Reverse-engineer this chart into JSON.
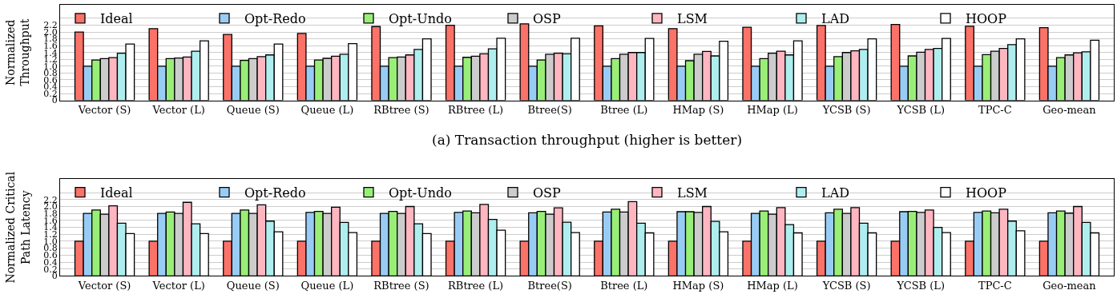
{
  "chart_data": [
    {
      "type": "bar",
      "ylabel": "Normalized\nThroughput",
      "annotations": [
        "(a) Transaction throughput (higher is better)"
      ],
      "categories": [
        "Vector (S)",
        "Vector (L)",
        "Queue (S)",
        "Queue (L)",
        "RBtree (S)",
        "RBtree (L)",
        "Btree(S)",
        "Btree (L)",
        "HMap (S)",
        "HMap (L)",
        "YCSB (S)",
        "YCSB (L)",
        "TPC-C",
        "Geo-mean"
      ],
      "series": [
        {
          "name": "Ideal",
          "color": "#fa7268",
          "values": [
            2.0,
            2.1,
            1.93,
            1.96,
            2.16,
            2.2,
            2.24,
            2.18,
            2.1,
            2.14,
            2.19,
            2.22,
            2.17,
            2.13
          ]
        },
        {
          "name": "Opt-Redo",
          "color": "#99ccf5",
          "values": [
            1.0,
            1.0,
            1.0,
            1.0,
            1.0,
            1.0,
            1.0,
            1.0,
            1.0,
            1.0,
            1.0,
            1.0,
            1.0,
            1.0
          ]
        },
        {
          "name": "Opt-Undo",
          "color": "#99ee77",
          "values": [
            1.18,
            1.22,
            1.17,
            1.18,
            1.25,
            1.26,
            1.18,
            1.22,
            1.16,
            1.22,
            1.28,
            1.3,
            1.34,
            1.25
          ]
        },
        {
          "name": "OSP",
          "color": "#cccccc",
          "values": [
            1.22,
            1.24,
            1.22,
            1.23,
            1.27,
            1.29,
            1.35,
            1.35,
            1.35,
            1.38,
            1.4,
            1.41,
            1.44,
            1.33
          ]
        },
        {
          "name": "LSM",
          "color": "#ffb6c1",
          "values": [
            1.25,
            1.27,
            1.28,
            1.29,
            1.33,
            1.36,
            1.38,
            1.4,
            1.43,
            1.44,
            1.45,
            1.49,
            1.52,
            1.39
          ]
        },
        {
          "name": "LAD",
          "color": "#aeeeee",
          "values": [
            1.38,
            1.44,
            1.33,
            1.35,
            1.49,
            1.51,
            1.36,
            1.4,
            1.3,
            1.33,
            1.49,
            1.52,
            1.63,
            1.42
          ]
        },
        {
          "name": "HOOP",
          "color": "#ffffff",
          "values": [
            1.65,
            1.74,
            1.65,
            1.66,
            1.8,
            1.82,
            1.82,
            1.81,
            1.73,
            1.74,
            1.8,
            1.81,
            1.8,
            1.76
          ]
        }
      ],
      "ylim": [
        0,
        2.8
      ],
      "yticks": [
        0,
        {
          "value": 0.2,
          "label": "0.2"
        },
        {
          "value": 0.4,
          "label": "0.4"
        },
        {
          "value": 0.6,
          "label": "0.6"
        },
        {
          "value": 0.8,
          "label": "0.8"
        },
        {
          "value": 1,
          "label": "1.0"
        },
        {
          "value": 1.2,
          "label": "1.2"
        },
        {
          "value": 1.4,
          "label": "1.4"
        },
        {
          "value": 1.6,
          "label": "1.6"
        },
        {
          "value": 1.8,
          "label": "1.8"
        },
        {
          "value": 2,
          "label": "2.0"
        },
        {
          "value": 2.2,
          "label": "2.2"
        },
        {
          "value": 2.4,
          "label": null
        }
      ],
      "grid": "y",
      "legend": "top left"
    },
    {
      "type": "bar",
      "ylabel": "Normalized Critical\nPath Latency",
      "categories": [
        "Vector (S)",
        "Vector (L)",
        "Queue (S)",
        "Queue (L)",
        "RBtree (S)",
        "RBtree (L)",
        "Btree(S)",
        "Btree (L)",
        "HMap (S)",
        "HMap (L)",
        "YCSB (S)",
        "YCSB (L)",
        "TPC-C",
        "Geo-mean"
      ],
      "series": [
        {
          "name": "Ideal",
          "color": "#fa7268",
          "values": [
            1.0,
            1.0,
            1.0,
            1.0,
            1.0,
            1.0,
            1.0,
            1.0,
            1.0,
            1.0,
            1.0,
            1.0,
            1.0,
            1.0
          ]
        },
        {
          "name": "Opt-Redo",
          "color": "#99ccf5",
          "values": [
            1.8,
            1.8,
            1.8,
            1.83,
            1.8,
            1.83,
            1.82,
            1.84,
            1.85,
            1.8,
            1.82,
            1.85,
            1.83,
            1.82
          ]
        },
        {
          "name": "Opt-Undo",
          "color": "#99ee77",
          "values": [
            1.9,
            1.84,
            1.9,
            1.86,
            1.86,
            1.87,
            1.86,
            1.92,
            1.85,
            1.87,
            1.92,
            1.86,
            1.87,
            1.87
          ]
        },
        {
          "name": "OSP",
          "color": "#cccccc",
          "values": [
            1.78,
            1.8,
            1.8,
            1.8,
            1.8,
            1.82,
            1.78,
            1.84,
            1.83,
            1.78,
            1.8,
            1.83,
            1.82,
            1.81
          ]
        },
        {
          "name": "LSM",
          "color": "#ffb6c1",
          "values": [
            2.02,
            2.12,
            2.05,
            1.98,
            2.0,
            2.06,
            1.96,
            2.14,
            2.0,
            1.97,
            1.97,
            1.9,
            1.92,
            2.0
          ]
        },
        {
          "name": "LAD",
          "color": "#aeeeee",
          "values": [
            1.52,
            1.5,
            1.58,
            1.54,
            1.5,
            1.63,
            1.55,
            1.52,
            1.57,
            1.48,
            1.52,
            1.4,
            1.58,
            1.54
          ]
        },
        {
          "name": "HOOP",
          "color": "#ffffff",
          "values": [
            1.22,
            1.22,
            1.27,
            1.25,
            1.22,
            1.32,
            1.25,
            1.24,
            1.27,
            1.24,
            1.24,
            1.25,
            1.3,
            1.24
          ]
        }
      ],
      "ylim": [
        0,
        2.8
      ],
      "yticks": [
        0,
        {
          "value": 0.2,
          "label": "0.2"
        },
        {
          "value": 0.4,
          "label": "0.4"
        },
        {
          "value": 0.6,
          "label": "0.6"
        },
        {
          "value": 0.8,
          "label": "0.8"
        },
        {
          "value": 1,
          "label": "1.0"
        },
        {
          "value": 1.2,
          "label": "1.2"
        },
        {
          "value": 1.4,
          "label": "1.4"
        },
        {
          "value": 1.6,
          "label": "1.6"
        },
        {
          "value": 1.8,
          "label": "1.8"
        },
        {
          "value": 2,
          "label": "2.0"
        },
        {
          "value": 2.2,
          "label": "2.2"
        },
        {
          "value": 2.4,
          "label": null
        }
      ],
      "grid": "y",
      "legend": "top left"
    }
  ]
}
